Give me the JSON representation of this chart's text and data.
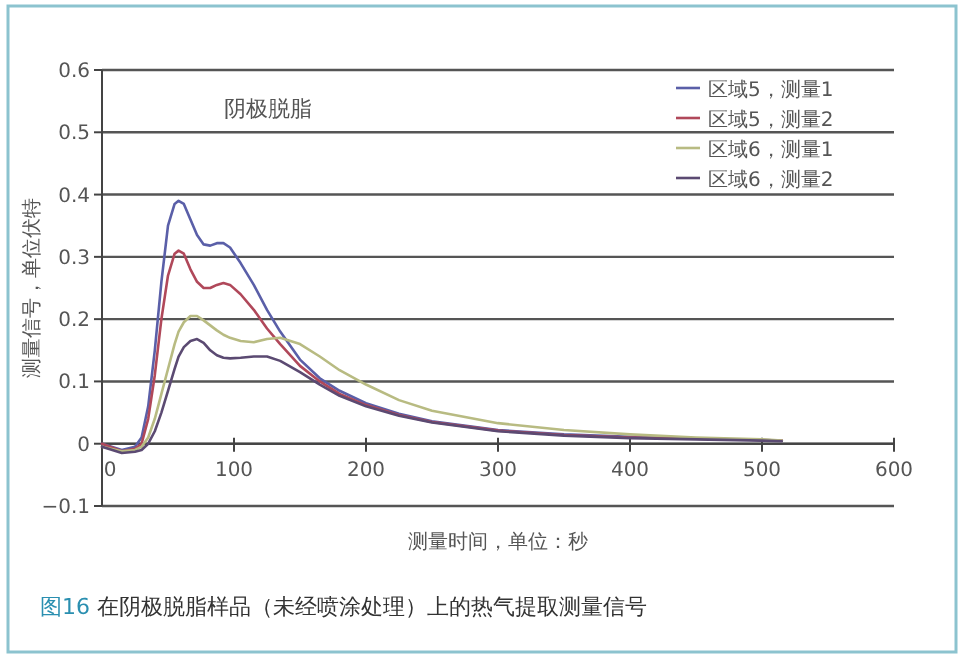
{
  "chart_data": {
    "type": "line",
    "title": "阴极脱脂",
    "xlabel": "测量时间，单位：秒",
    "ylabel": "测量信号，单位伏特",
    "annotations": [
      "图16 在阴极脱脂样品（未经喷涂处理）上的热气提取测量信号"
    ],
    "x": [
      0,
      15,
      25,
      30,
      35,
      40,
      45,
      50,
      55,
      58,
      62,
      67,
      72,
      77,
      82,
      87,
      92,
      97,
      105,
      115,
      125,
      135,
      150,
      165,
      180,
      200,
      225,
      250,
      300,
      350,
      400,
      450,
      500,
      515
    ],
    "series": [
      {
        "name": "区域5，测量1",
        "color": "#5a5fa8",
        "values": [
          0,
          -0.01,
          -0.005,
          0.01,
          0.06,
          0.15,
          0.26,
          0.35,
          0.385,
          0.39,
          0.385,
          0.36,
          0.335,
          0.32,
          0.318,
          0.322,
          0.322,
          0.315,
          0.29,
          0.255,
          0.215,
          0.18,
          0.135,
          0.105,
          0.085,
          0.065,
          0.048,
          0.036,
          0.022,
          0.015,
          0.011,
          0.008,
          0.006,
          0.005
        ]
      },
      {
        "name": "区域5，测量2",
        "color": "#b0485a",
        "values": [
          0,
          -0.012,
          -0.008,
          0,
          0.04,
          0.11,
          0.2,
          0.27,
          0.305,
          0.31,
          0.305,
          0.28,
          0.26,
          0.25,
          0.25,
          0.255,
          0.258,
          0.255,
          0.24,
          0.215,
          0.185,
          0.16,
          0.125,
          0.1,
          0.08,
          0.062,
          0.046,
          0.035,
          0.021,
          0.014,
          0.01,
          0.008,
          0.006,
          0.005
        ]
      },
      {
        "name": "区域6，测量1",
        "color": "#b8bb82",
        "values": [
          -0.005,
          -0.012,
          -0.01,
          -0.005,
          0.01,
          0.04,
          0.08,
          0.12,
          0.16,
          0.18,
          0.195,
          0.205,
          0.205,
          0.198,
          0.19,
          0.182,
          0.175,
          0.17,
          0.165,
          0.163,
          0.168,
          0.17,
          0.16,
          0.14,
          0.118,
          0.095,
          0.07,
          0.053,
          0.033,
          0.022,
          0.015,
          0.01,
          0.007,
          0.005
        ]
      },
      {
        "name": "区域6，测量2",
        "color": "#5b4a72",
        "values": [
          -0.005,
          -0.015,
          -0.013,
          -0.01,
          0,
          0.02,
          0.05,
          0.085,
          0.12,
          0.14,
          0.155,
          0.165,
          0.168,
          0.162,
          0.15,
          0.142,
          0.138,
          0.137,
          0.138,
          0.14,
          0.14,
          0.133,
          0.115,
          0.095,
          0.077,
          0.06,
          0.045,
          0.034,
          0.02,
          0.013,
          0.009,
          0.007,
          0.005,
          0.004
        ]
      }
    ],
    "xlim": [
      0,
      600
    ],
    "xticks": [
      0,
      100,
      200,
      300,
      400,
      500,
      600
    ],
    "ylim": [
      -0.1,
      0.6
    ],
    "yticks": [
      {
        "value": -0.1,
        "label": "−0.1"
      },
      0,
      0.1,
      0.2,
      0.3,
      0.4,
      0.5,
      0.6
    ],
    "grid": "y",
    "legend": "top right",
    "line_style": "solid",
    "marker": "none"
  }
}
